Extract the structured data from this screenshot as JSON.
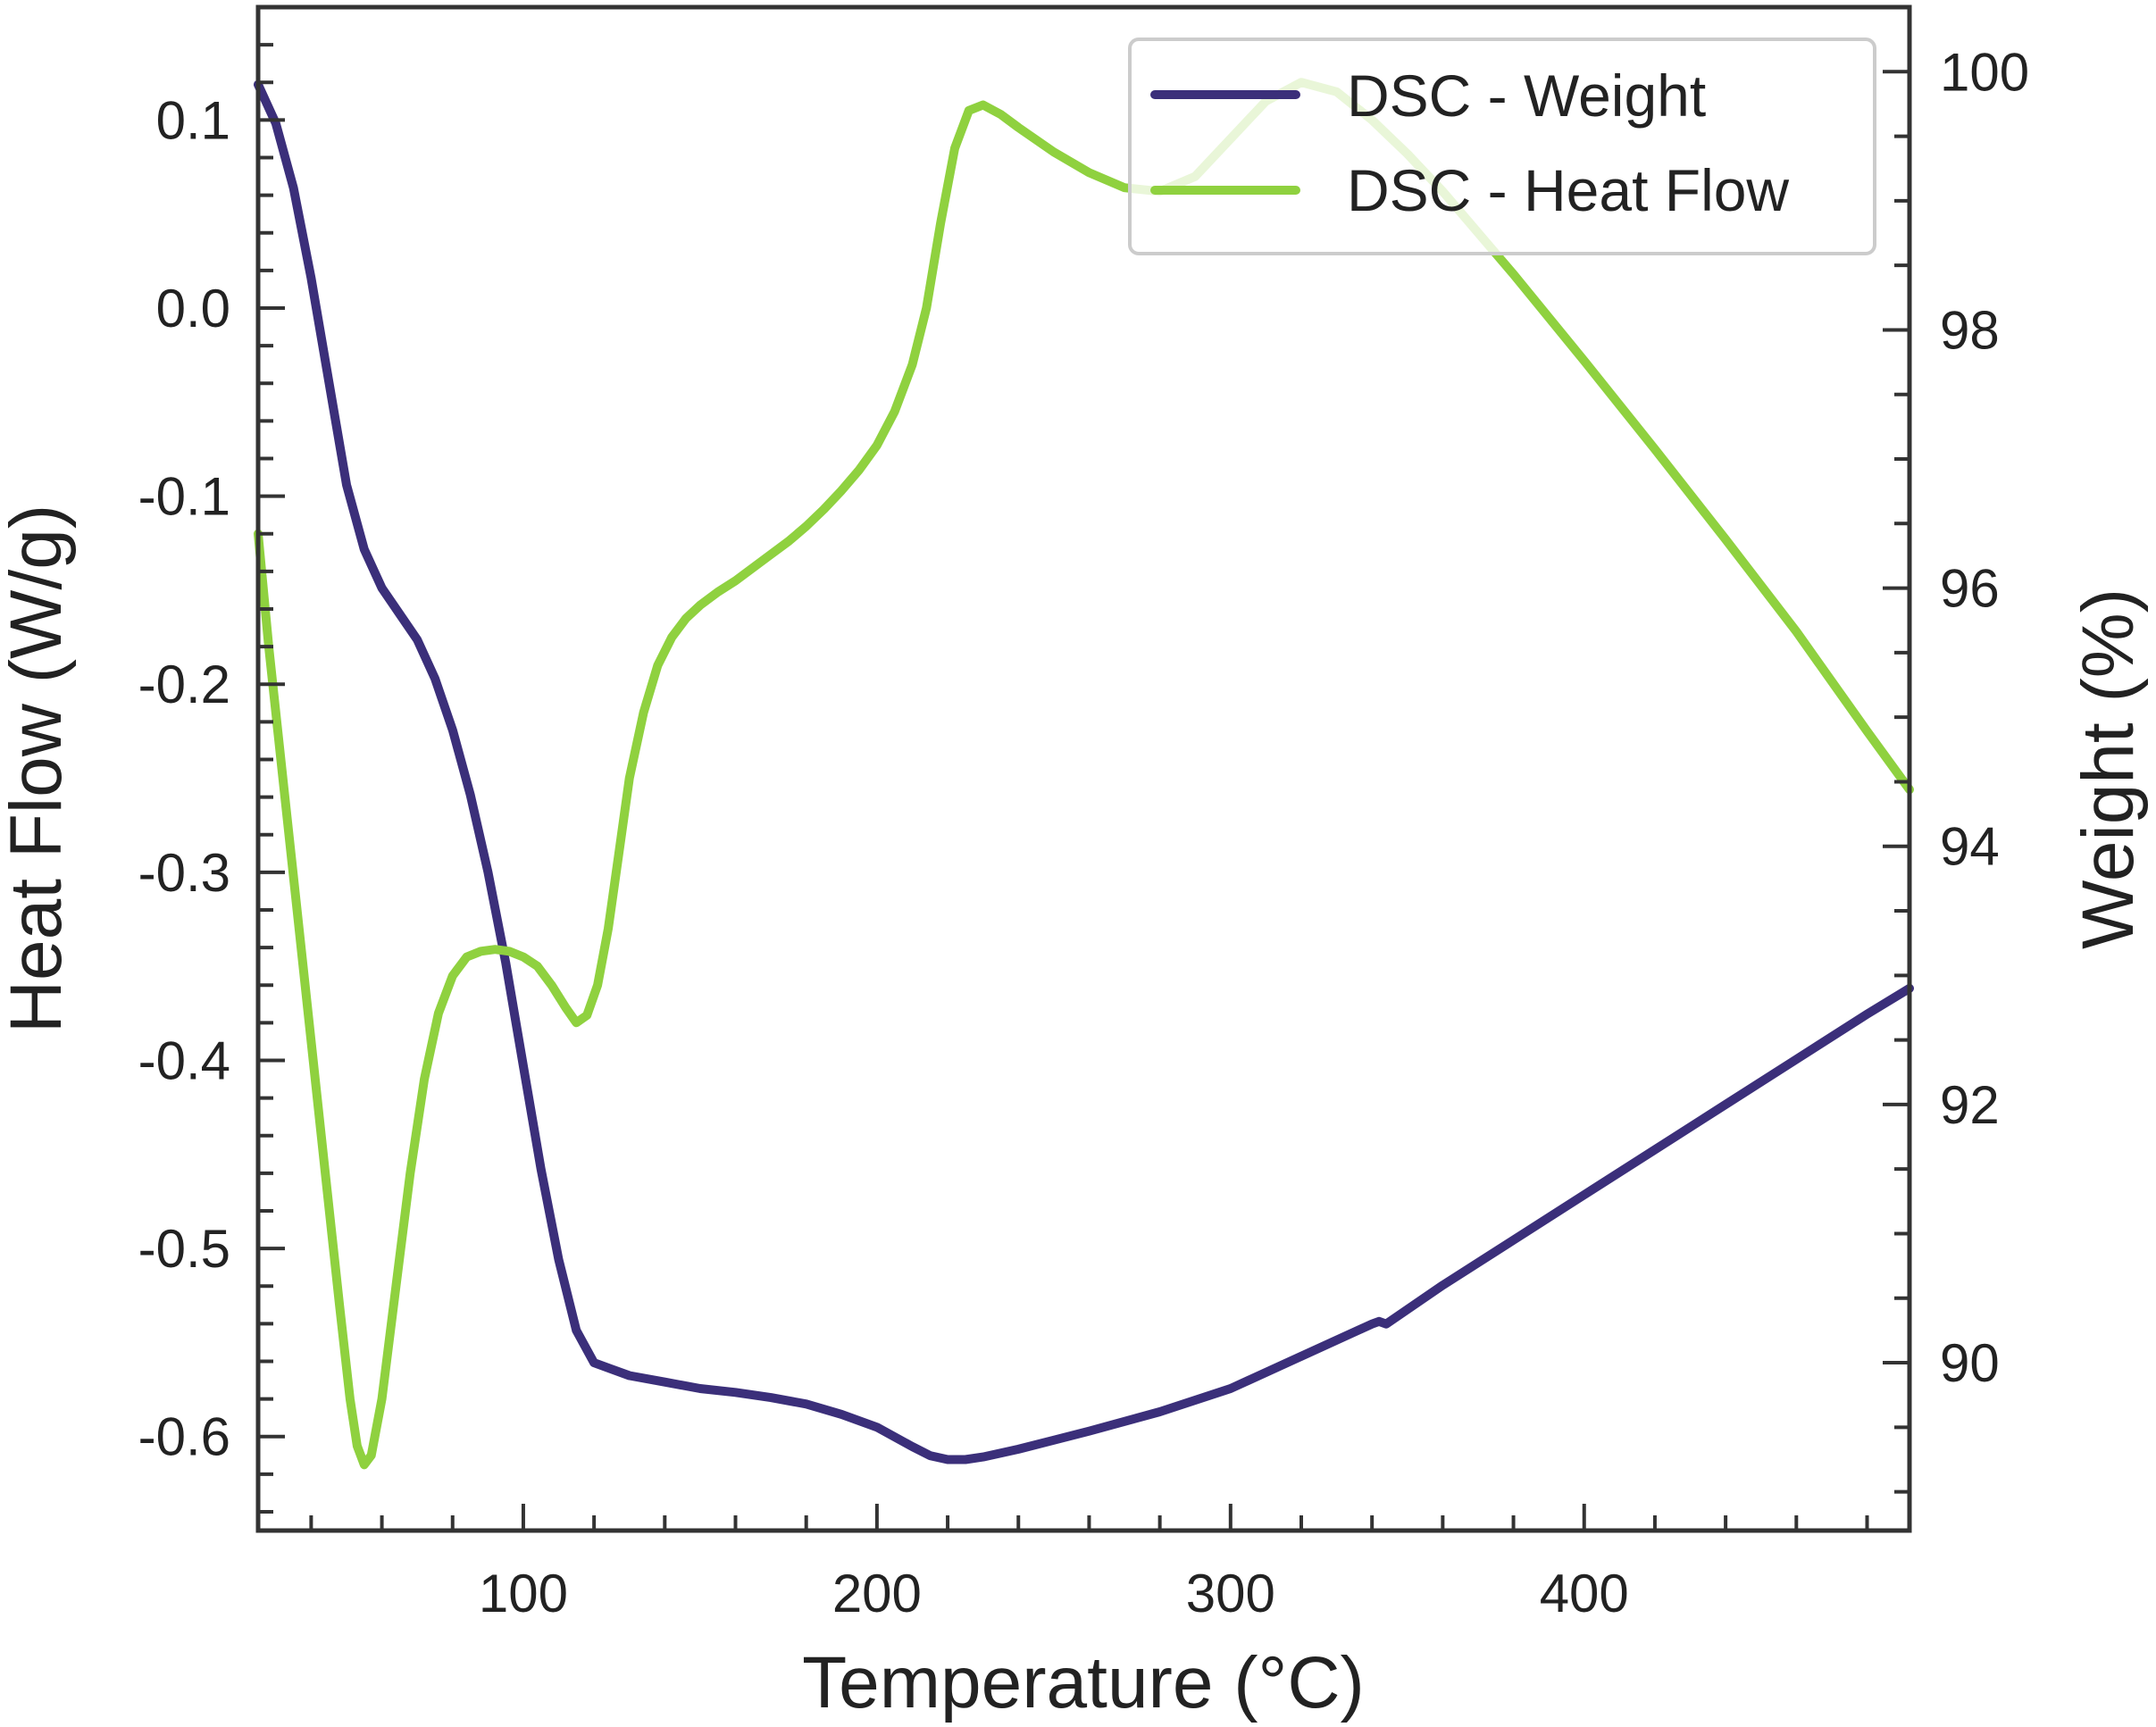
{
  "chart_data": {
    "type": "line",
    "title": "",
    "xlabel": "Temperature (°C)",
    "ylabel_left": "Heat Flow (W/g)",
    "ylabel_right": "Weight (%)",
    "xlim": [
      25,
      492
    ],
    "ylim_left": [
      -0.65,
      0.16
    ],
    "ylim_right": [
      88.7,
      100.5
    ],
    "xticks": [
      100,
      200,
      300,
      400
    ],
    "xtick_labels": [
      "100",
      "200",
      "300",
      "400"
    ],
    "yticks_left": [
      0.1,
      0.0,
      -0.1,
      -0.2,
      -0.3,
      -0.4,
      -0.5,
      -0.6
    ],
    "ytick_labels_left": [
      "0.1",
      "0.0",
      "-0.1",
      "-0.2",
      "-0.3",
      "-0.4",
      "-0.5",
      "-0.6"
    ],
    "yticks_right": [
      100,
      98,
      96,
      94,
      92,
      90
    ],
    "ytick_labels_right": [
      "100",
      "98",
      "96",
      "94",
      "92",
      "90"
    ],
    "grid": false,
    "legend_position": "top-right",
    "colors": {
      "weight": "#3b2f7a",
      "heat_flow": "#8fd13f",
      "axis": "#333333"
    },
    "series": [
      {
        "name": "DSC - Weight",
        "axis": "right",
        "x": [
          25,
          30,
          35,
          40,
          45,
          50,
          55,
          60,
          65,
          70,
          75,
          80,
          85,
          90,
          95,
          100,
          105,
          110,
          115,
          120,
          125,
          130,
          140,
          150,
          160,
          170,
          180,
          190,
          200,
          210,
          215,
          220,
          225,
          230,
          240,
          250,
          260,
          280,
          300,
          320,
          340,
          342,
          344,
          360,
          380,
          400,
          420,
          440,
          460,
          480,
          492
        ],
        "y": [
          99.9,
          99.6,
          99.1,
          98.4,
          97.6,
          96.8,
          96.3,
          96.0,
          95.8,
          95.6,
          95.3,
          94.9,
          94.4,
          93.8,
          93.1,
          92.3,
          91.5,
          90.8,
          90.25,
          90.0,
          89.95,
          89.9,
          89.85,
          89.8,
          89.77,
          89.73,
          89.68,
          89.6,
          89.5,
          89.35,
          89.28,
          89.25,
          89.25,
          89.27,
          89.33,
          89.4,
          89.47,
          89.62,
          89.8,
          90.05,
          90.3,
          90.32,
          90.3,
          90.6,
          90.95,
          91.3,
          91.65,
          92.0,
          92.35,
          92.7,
          92.9
        ]
      },
      {
        "name": "DSC - Heat Flow",
        "axis": "left",
        "x": [
          25,
          28,
          32,
          36,
          40,
          44,
          48,
          51,
          53,
          55,
          57,
          60,
          64,
          68,
          72,
          76,
          80,
          84,
          88,
          92,
          96,
          100,
          104,
          108,
          112,
          115,
          118,
          121,
          124,
          127,
          130,
          134,
          138,
          142,
          146,
          150,
          155,
          160,
          165,
          170,
          175,
          180,
          185,
          190,
          195,
          200,
          205,
          210,
          214,
          218,
          222,
          226,
          230,
          235,
          240,
          250,
          260,
          270,
          280,
          290,
          300,
          310,
          320,
          330,
          340,
          350,
          360,
          370,
          380,
          390,
          400,
          420,
          440,
          460,
          480,
          492
        ],
        "y": [
          -0.12,
          -0.18,
          -0.25,
          -0.32,
          -0.39,
          -0.46,
          -0.53,
          -0.58,
          -0.605,
          -0.615,
          -0.61,
          -0.58,
          -0.52,
          -0.46,
          -0.41,
          -0.375,
          -0.355,
          -0.345,
          -0.342,
          -0.341,
          -0.342,
          -0.345,
          -0.35,
          -0.36,
          -0.372,
          -0.38,
          -0.376,
          -0.36,
          -0.33,
          -0.29,
          -0.25,
          -0.215,
          -0.19,
          -0.175,
          -0.165,
          -0.158,
          -0.151,
          -0.145,
          -0.138,
          -0.131,
          -0.124,
          -0.116,
          -0.107,
          -0.097,
          -0.086,
          -0.073,
          -0.055,
          -0.03,
          0.0,
          0.045,
          0.085,
          0.105,
          0.108,
          0.103,
          0.096,
          0.083,
          0.072,
          0.064,
          0.062,
          0.07,
          0.09,
          0.11,
          0.12,
          0.115,
          0.1,
          0.082,
          0.062,
          0.04,
          0.018,
          -0.005,
          -0.028,
          -0.075,
          -0.123,
          -0.172,
          -0.225,
          -0.256
        ]
      }
    ]
  }
}
